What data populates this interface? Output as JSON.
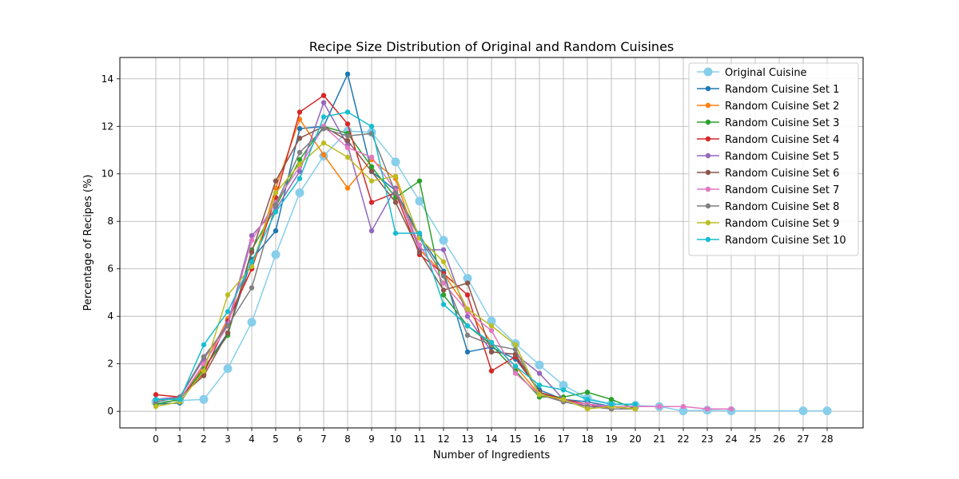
{
  "chart_data": {
    "type": "line",
    "title": "Recipe Size Distribution of Original and Random Cuisines",
    "xlabel": "Number of Ingredients",
    "ylabel": "Percentage of Recipes (%)",
    "xlim": [
      -1.5,
      29.5
    ],
    "ylim": [
      -0.7,
      14.9
    ],
    "xticks": [
      0,
      1,
      2,
      3,
      4,
      5,
      6,
      7,
      8,
      9,
      10,
      11,
      12,
      13,
      14,
      15,
      16,
      17,
      18,
      19,
      20,
      21,
      22,
      23,
      24,
      25,
      26,
      27,
      28
    ],
    "yticks": [
      0,
      2,
      4,
      6,
      8,
      10,
      12,
      14
    ],
    "grid": true,
    "legend": "top-right",
    "series": [
      {
        "name": "Original Cuisine",
        "color": "#87ceeb",
        "marker_size": "large",
        "x": [
          0,
          1,
          2,
          3,
          4,
          5,
          6,
          7,
          8,
          9,
          10,
          11,
          12,
          13,
          14,
          15,
          16,
          17,
          18,
          19,
          20,
          21,
          22,
          23,
          24,
          27,
          28
        ],
        "y": [
          0.4,
          0.45,
          0.5,
          1.8,
          3.75,
          6.6,
          9.2,
          10.75,
          11.8,
          11.75,
          10.5,
          8.85,
          7.2,
          5.6,
          3.8,
          2.85,
          1.95,
          1.1,
          0.55,
          0.3,
          0.25,
          0.2,
          0.02,
          0.05,
          0.02,
          0.02,
          0.02
        ]
      },
      {
        "name": "Random Cuisine Set 1",
        "color": "#1f77b4",
        "x": [
          0,
          1,
          2,
          3,
          4,
          5,
          6,
          7,
          8,
          9,
          10,
          11,
          12,
          13,
          14,
          15,
          16,
          17,
          18,
          19,
          20
        ],
        "y": [
          0.3,
          0.35,
          1.8,
          3.3,
          6.4,
          7.6,
          11.9,
          12.0,
          14.2,
          10.1,
          9.3,
          7.4,
          5.9,
          2.5,
          2.7,
          2.2,
          0.9,
          0.5,
          0.4,
          0.2,
          0.2
        ]
      },
      {
        "name": "Random Cuisine Set 2",
        "color": "#ff7f0e",
        "x": [
          0,
          1,
          2,
          3,
          4,
          5,
          6,
          7,
          8,
          9,
          10,
          11,
          12,
          13,
          14,
          15,
          16,
          17,
          18,
          19,
          20
        ],
        "y": [
          0.3,
          0.5,
          1.9,
          3.9,
          6.0,
          9.4,
          12.3,
          10.8,
          9.4,
          10.6,
          9.8,
          6.8,
          5.8,
          4.3,
          2.9,
          1.9,
          0.7,
          0.5,
          0.3,
          0.2,
          0.1
        ]
      },
      {
        "name": "Random Cuisine Set 3",
        "color": "#2ca02c",
        "x": [
          0,
          1,
          2,
          3,
          4,
          5,
          6,
          7,
          8,
          9,
          10,
          11,
          12,
          13,
          14,
          15,
          16,
          17,
          18,
          19,
          20
        ],
        "y": [
          0.3,
          0.5,
          1.8,
          3.2,
          6.8,
          8.6,
          10.6,
          12.0,
          11.7,
          10.3,
          9.0,
          9.7,
          4.9,
          3.6,
          2.8,
          1.7,
          0.6,
          0.6,
          0.8,
          0.5,
          0.1
        ]
      },
      {
        "name": "Random Cuisine Set 4",
        "color": "#d62728",
        "x": [
          0,
          1,
          2,
          3,
          4,
          5,
          6,
          7,
          8,
          9,
          10,
          11,
          12,
          13,
          14,
          15,
          16,
          17,
          18,
          19,
          20
        ],
        "y": [
          0.7,
          0.6,
          1.6,
          3.8,
          6.0,
          9.0,
          12.6,
          13.3,
          12.1,
          8.8,
          9.2,
          6.6,
          5.8,
          4.9,
          1.7,
          2.3,
          0.8,
          0.5,
          0.3,
          0.1,
          0.1
        ]
      },
      {
        "name": "Random Cuisine Set 5",
        "color": "#9467bd",
        "x": [
          0,
          1,
          2,
          3,
          4,
          5,
          6,
          7,
          8,
          9,
          10,
          11,
          12,
          13,
          14,
          15,
          16,
          17,
          18,
          19,
          20
        ],
        "y": [
          0.5,
          0.6,
          2.2,
          3.7,
          7.4,
          8.5,
          10.1,
          13.0,
          11.2,
          7.6,
          9.4,
          6.8,
          6.8,
          4.0,
          2.5,
          2.4,
          1.6,
          0.5,
          0.2,
          0.2,
          0.1
        ]
      },
      {
        "name": "Random Cuisine Set 6",
        "color": "#8c564b",
        "x": [
          0,
          1,
          2,
          3,
          4,
          5,
          6,
          7,
          8,
          9,
          10,
          11,
          12,
          13,
          14,
          15,
          16,
          17,
          18,
          19,
          20
        ],
        "y": [
          0.4,
          0.6,
          1.5,
          3.3,
          6.7,
          9.7,
          11.5,
          12.0,
          11.4,
          10.1,
          8.8,
          6.7,
          5.1,
          5.4,
          2.5,
          2.4,
          0.8,
          0.4,
          0.3,
          0.2,
          0.1
        ]
      },
      {
        "name": "Random Cuisine Set 7",
        "color": "#e377c2",
        "x": [
          0,
          1,
          2,
          3,
          4,
          5,
          6,
          7,
          8,
          9,
          10,
          11,
          12,
          13,
          14,
          15,
          16,
          17,
          18,
          19,
          20,
          21,
          22,
          23,
          24
        ],
        "y": [
          0.5,
          0.5,
          2.0,
          3.6,
          7.2,
          8.8,
          10.3,
          12.0,
          11.1,
          10.7,
          9.3,
          7.0,
          5.4,
          4.2,
          3.4,
          1.6,
          0.7,
          0.4,
          0.3,
          0.2,
          0.2,
          0.2,
          0.2,
          0.1,
          0.1
        ]
      },
      {
        "name": "Random Cuisine Set 8",
        "color": "#7f7f7f",
        "x": [
          0,
          1,
          2,
          3,
          4,
          5,
          6,
          7,
          8,
          9,
          10,
          11,
          12,
          13,
          14,
          15,
          16,
          17,
          18,
          19,
          20
        ],
        "y": [
          0.4,
          0.6,
          2.3,
          3.6,
          5.2,
          8.7,
          10.9,
          11.9,
          11.6,
          11.7,
          9.2,
          7.3,
          5.7,
          3.2,
          2.8,
          2.6,
          0.7,
          0.4,
          0.2,
          0.1,
          0.1
        ]
      },
      {
        "name": "Random Cuisine Set 9",
        "color": "#bcbd22",
        "x": [
          0,
          1,
          2,
          3,
          4,
          5,
          6,
          7,
          8,
          9,
          10,
          11,
          12,
          13,
          14,
          15,
          16,
          17,
          18,
          19,
          20
        ],
        "y": [
          0.2,
          0.4,
          1.7,
          4.9,
          6.1,
          9.2,
          10.4,
          11.3,
          10.7,
          9.7,
          9.9,
          7.3,
          6.3,
          4.3,
          3.6,
          2.8,
          0.7,
          0.5,
          0.1,
          0.2,
          0.1
        ]
      },
      {
        "name": "Random Cuisine Set 10",
        "color": "#17becf",
        "x": [
          0,
          1,
          2,
          3,
          4,
          5,
          6,
          7,
          8,
          9,
          10,
          11,
          12,
          13,
          14,
          15,
          16,
          17,
          18,
          19,
          20
        ],
        "y": [
          0.5,
          0.5,
          2.8,
          4.2,
          6.3,
          8.4,
          9.8,
          12.4,
          12.6,
          12.0,
          7.5,
          7.5,
          4.5,
          3.6,
          2.9,
          1.9,
          1.1,
          0.9,
          0.5,
          0.3,
          0.3
        ]
      }
    ]
  }
}
